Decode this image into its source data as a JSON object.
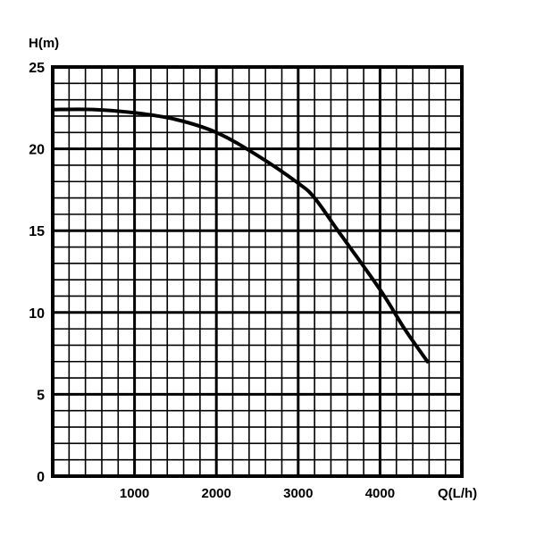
{
  "chart_data": {
    "type": "line",
    "xlabel": "Q(L/h)",
    "ylabel": "H(m)",
    "xlim": [
      0,
      5000
    ],
    "ylim": [
      0,
      25
    ],
    "grid": true,
    "x_tick_labels": [
      "1000",
      "2000",
      "3000",
      "4000"
    ],
    "x_ticks": [
      1000,
      2000,
      3000,
      4000
    ],
    "y_tick_labels": [
      "0",
      "5",
      "10",
      "15",
      "20",
      "25"
    ],
    "y_ticks": [
      0,
      5,
      10,
      15,
      20,
      25
    ],
    "series": [
      {
        "x": [
          0,
          500,
          1000,
          1500,
          2000,
          2500,
          3000,
          3200,
          3500,
          4000,
          4300,
          4580
        ],
        "y": [
          22.4,
          22.4,
          22.2,
          21.8,
          21.0,
          19.6,
          17.9,
          17.0,
          14.9,
          11.4,
          9.0,
          7.0
        ],
        "color": "#000000"
      }
    ]
  }
}
